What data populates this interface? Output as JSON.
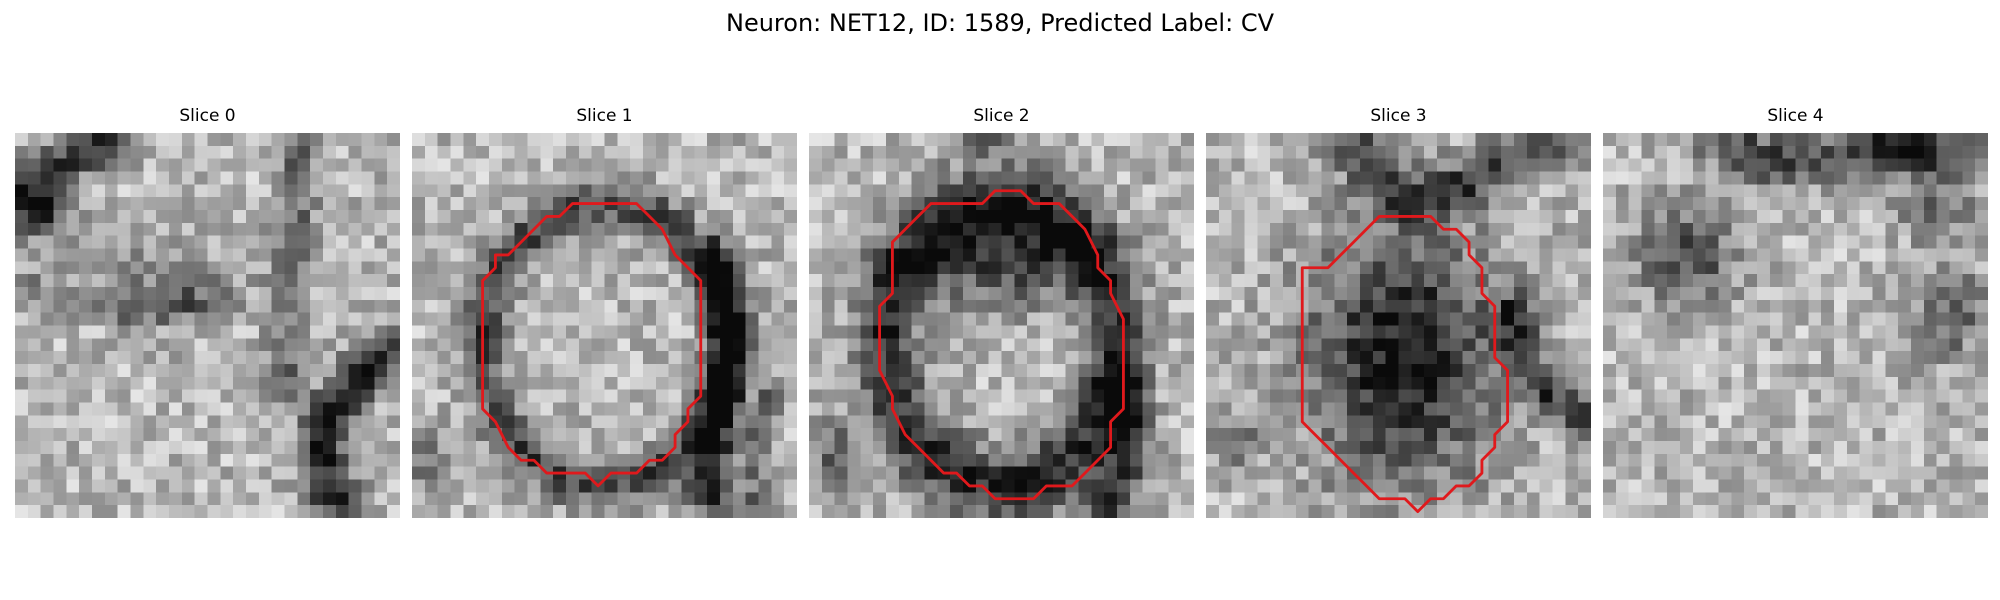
{
  "figure": {
    "title": "Neuron: NET12, ID: 1589, Predicted Label: CV"
  },
  "panels": [
    {
      "title": "Slice 0",
      "contour": null,
      "dark_features": [
        {
          "type": "band",
          "path": [
            [
              1,
              4
            ],
            [
              3,
              3
            ],
            [
              6,
              1
            ],
            [
              8,
              0
            ]
          ],
          "width": 2.5,
          "strength": 0.55
        },
        {
          "type": "blob",
          "cx": 2,
          "cy": 6.5,
          "rx": 2.5,
          "ry": 2,
          "strength": 0.5
        },
        {
          "type": "band",
          "path": [
            [
              0,
              12
            ],
            [
              6,
              13
            ],
            [
              10,
              14
            ],
            [
              16,
              13
            ]
          ],
          "width": 2,
          "strength": 0.25
        },
        {
          "type": "band",
          "path": [
            [
              22,
              0
            ],
            [
              22,
              6
            ],
            [
              21,
              12
            ],
            [
              21,
              20
            ]
          ],
          "width": 2.2,
          "strength": 0.3
        },
        {
          "type": "band",
          "path": [
            [
              29,
              17
            ],
            [
              26,
              20
            ],
            [
              24,
              23
            ],
            [
              24,
              27
            ],
            [
              26,
              30
            ]
          ],
          "width": 2.6,
          "strength": 0.6
        },
        {
          "type": "blob",
          "cx": 12,
          "cy": 11,
          "rx": 5,
          "ry": 4,
          "strength": 0.2
        }
      ]
    },
    {
      "title": "Slice 1",
      "contour": [
        [
          9.5,
          7.5
        ],
        [
          10.5,
          6.5
        ],
        [
          11.5,
          6.5
        ],
        [
          12.5,
          5.5
        ],
        [
          17.5,
          5.5
        ],
        [
          18.5,
          6.5
        ],
        [
          19.5,
          7.5
        ],
        [
          20.5,
          9.5
        ],
        [
          21.5,
          10.5
        ],
        [
          22.5,
          11.5
        ],
        [
          22.5,
          20.5
        ],
        [
          21.5,
          21.5
        ],
        [
          21.5,
          22.5
        ],
        [
          20.5,
          23.5
        ],
        [
          20.5,
          24.5
        ],
        [
          19.5,
          25.5
        ],
        [
          18.5,
          25.5
        ],
        [
          17.5,
          26.5
        ],
        [
          15.5,
          26.5
        ],
        [
          14.5,
          27.5
        ],
        [
          13.5,
          26.5
        ],
        [
          10.5,
          26.5
        ],
        [
          9.5,
          25.5
        ],
        [
          8.5,
          25.5
        ],
        [
          7.5,
          24.5
        ],
        [
          6.5,
          22.5
        ],
        [
          5.5,
          21.5
        ],
        [
          5.5,
          11.5
        ],
        [
          6.5,
          10.5
        ],
        [
          6.5,
          9.5
        ],
        [
          7.5,
          9.5
        ],
        [
          8.5,
          8.5
        ]
      ],
      "dark_features": [
        {
          "type": "ring",
          "cx": 15,
          "cy": 16.5,
          "rx": 9.5,
          "ry": 11,
          "width": 2.3,
          "strength": 0.45
        },
        {
          "type": "band",
          "path": [
            [
              24,
              10
            ],
            [
              25,
              16
            ],
            [
              24,
              22
            ],
            [
              23,
              27
            ],
            [
              24,
              30
            ]
          ],
          "width": 2.5,
          "strength": 0.5
        },
        {
          "type": "blob",
          "cx": 1.5,
          "cy": 26,
          "rx": 2,
          "ry": 3,
          "strength": 0.3
        },
        {
          "type": "band",
          "path": [
            [
              28,
              20
            ],
            [
              27,
              24
            ],
            [
              27,
              29
            ]
          ],
          "width": 1.5,
          "strength": 0.3
        }
      ]
    },
    {
      "title": "Slice 2",
      "contour": [
        [
          6.5,
          8.5
        ],
        [
          7.5,
          7.5
        ],
        [
          8.5,
          6.5
        ],
        [
          9.5,
          5.5
        ],
        [
          13.5,
          5.5
        ],
        [
          14.5,
          4.5
        ],
        [
          15.5,
          4.5
        ],
        [
          16.5,
          4.5
        ],
        [
          17.5,
          5.5
        ],
        [
          19.5,
          5.5
        ],
        [
          20.5,
          6.5
        ],
        [
          21.5,
          7.5
        ],
        [
          22.5,
          9.5
        ],
        [
          22.5,
          10.5
        ],
        [
          23.5,
          11.5
        ],
        [
          23.5,
          12.5
        ],
        [
          24.5,
          14.5
        ],
        [
          24.5,
          18.5
        ],
        [
          24.5,
          21.5
        ],
        [
          23.5,
          22.5
        ],
        [
          23.5,
          24.5
        ],
        [
          22.5,
          25.5
        ],
        [
          21.5,
          26.5
        ],
        [
          20.5,
          27.5
        ],
        [
          18.5,
          27.5
        ],
        [
          17.5,
          28.5
        ],
        [
          14.5,
          28.5
        ],
        [
          13.5,
          27.5
        ],
        [
          12.5,
          27.5
        ],
        [
          11.5,
          26.5
        ],
        [
          10.5,
          26.5
        ],
        [
          9.5,
          25.5
        ],
        [
          8.5,
          24.5
        ],
        [
          7.5,
          23.5
        ],
        [
          6.5,
          21.5
        ],
        [
          6.5,
          20.5
        ],
        [
          5.5,
          18.5
        ],
        [
          5.5,
          13.5
        ],
        [
          6.5,
          12.5
        ],
        [
          6.5,
          9.5
        ]
      ],
      "dark_features": [
        {
          "type": "ring",
          "cx": 15,
          "cy": 16.5,
          "rx": 9,
          "ry": 11,
          "width": 3.5,
          "strength": 0.55
        },
        {
          "type": "blob",
          "cx": 15,
          "cy": 10,
          "rx": 7,
          "ry": 4,
          "strength": 0.45
        },
        {
          "type": "band",
          "path": [
            [
              24,
              20
            ],
            [
              25,
              24
            ],
            [
              24,
              28
            ],
            [
              23,
              30
            ]
          ],
          "width": 2.5,
          "strength": 0.45
        },
        {
          "type": "blob",
          "cx": 2,
          "cy": 25,
          "rx": 2,
          "ry": 3,
          "strength": 0.35
        },
        {
          "type": "blob",
          "cx": 13,
          "cy": 0.5,
          "rx": 3,
          "ry": 1.5,
          "strength": 0.3
        }
      ]
    },
    {
      "title": "Slice 3",
      "contour": [
        [
          9.5,
          10.5
        ],
        [
          10.5,
          9.5
        ],
        [
          11.5,
          8.5
        ],
        [
          12.5,
          7.5
        ],
        [
          13.5,
          6.5
        ],
        [
          17.5,
          6.5
        ],
        [
          18.5,
          7.5
        ],
        [
          19.5,
          7.5
        ],
        [
          20.5,
          8.5
        ],
        [
          20.5,
          9.5
        ],
        [
          21.5,
          10.5
        ],
        [
          21.5,
          12.5
        ],
        [
          22.5,
          13.5
        ],
        [
          22.5,
          14.5
        ],
        [
          22.5,
          17.5
        ],
        [
          23.5,
          18.5
        ],
        [
          23.5,
          22.5
        ],
        [
          22.5,
          23.5
        ],
        [
          22.5,
          24.5
        ],
        [
          21.5,
          25.5
        ],
        [
          21.5,
          26.5
        ],
        [
          20.5,
          27.5
        ],
        [
          19.5,
          27.5
        ],
        [
          18.5,
          28.5
        ],
        [
          17.5,
          28.5
        ],
        [
          16.5,
          29.5
        ],
        [
          15.5,
          28.5
        ],
        [
          13.5,
          28.5
        ],
        [
          12.5,
          27.5
        ],
        [
          11.5,
          26.5
        ],
        [
          10.5,
          25.5
        ],
        [
          9.5,
          24.5
        ],
        [
          8.5,
          23.5
        ],
        [
          7.5,
          22.5
        ],
        [
          7.5,
          19.5
        ],
        [
          7.5,
          10.5
        ]
      ],
      "dark_features": [
        {
          "type": "blob",
          "cx": 15.5,
          "cy": 17.5,
          "rx": 8,
          "ry": 10.5,
          "strength": 0.65
        },
        {
          "type": "band",
          "path": [
            [
              11,
              0
            ],
            [
              13,
              3
            ],
            [
              16,
              5
            ],
            [
              20,
              4
            ],
            [
              24,
              2
            ],
            [
              28,
              0
            ]
          ],
          "width": 2.8,
          "strength": 0.45
        },
        {
          "type": "band",
          "path": [
            [
              24,
              14
            ],
            [
              25,
              18
            ],
            [
              27,
              21
            ],
            [
              29,
              22
            ]
          ],
          "width": 2.2,
          "strength": 0.45
        },
        {
          "type": "blob",
          "cx": 2,
          "cy": 24,
          "rx": 2.5,
          "ry": 2,
          "strength": 0.3
        }
      ]
    },
    {
      "title": "Slice 4",
      "contour": null,
      "dark_features": [
        {
          "type": "band",
          "path": [
            [
              9,
              0
            ],
            [
              12,
              2
            ],
            [
              17,
              2
            ],
            [
              22,
              1
            ],
            [
              28,
              2
            ]
          ],
          "width": 3,
          "strength": 0.45
        },
        {
          "type": "blob",
          "cx": 6.5,
          "cy": 9.5,
          "rx": 4,
          "ry": 4.5,
          "strength": 0.45
        },
        {
          "type": "blob",
          "cx": 23.5,
          "cy": 1.5,
          "rx": 2,
          "ry": 1.5,
          "strength": 0.4
        },
        {
          "type": "blob",
          "cx": 27,
          "cy": 14,
          "rx": 3,
          "ry": 4,
          "strength": 0.35
        },
        {
          "type": "blob",
          "cx": 26,
          "cy": 6,
          "rx": 3,
          "ry": 2.5,
          "strength": 0.3
        }
      ]
    }
  ],
  "colors": {
    "contour": "#e0191c",
    "background": "#ffffff",
    "text": "#000000"
  }
}
